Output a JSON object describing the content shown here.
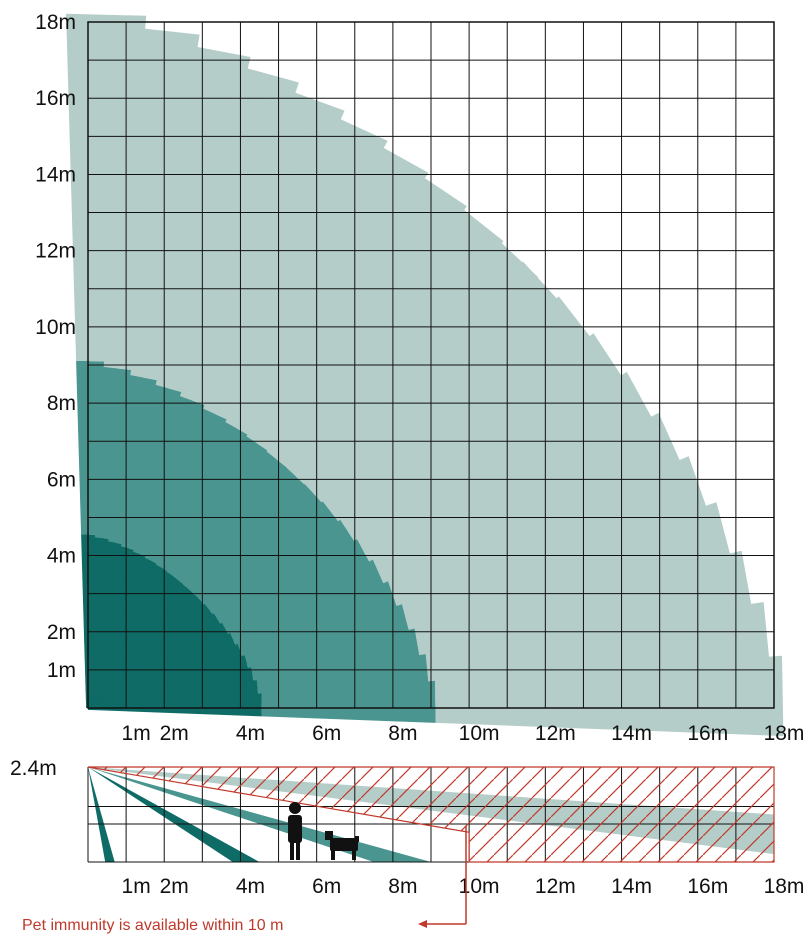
{
  "top_plan": {
    "y_ticks": [
      {
        "value": 1,
        "label": "1m"
      },
      {
        "value": 2,
        "label": "2m"
      },
      {
        "value": 4,
        "label": "4m"
      },
      {
        "value": 6,
        "label": "6m"
      },
      {
        "value": 8,
        "label": "8m"
      },
      {
        "value": 10,
        "label": "10m"
      },
      {
        "value": 12,
        "label": "12m"
      },
      {
        "value": 14,
        "label": "14m"
      },
      {
        "value": 16,
        "label": "16m"
      },
      {
        "value": 18,
        "label": "18m"
      }
    ],
    "x_ticks": [
      {
        "value": 1,
        "label": "1m"
      },
      {
        "value": 2,
        "label": "2m"
      },
      {
        "value": 4,
        "label": "4m"
      },
      {
        "value": 6,
        "label": "6m"
      },
      {
        "value": 8,
        "label": "8m"
      },
      {
        "value": 10,
        "label": "10m"
      },
      {
        "value": 12,
        "label": "12m"
      },
      {
        "value": 14,
        "label": "14m"
      },
      {
        "value": 16,
        "label": "16m"
      },
      {
        "value": 18,
        "label": "18m"
      }
    ],
    "range_m": 18
  },
  "side_view": {
    "height_label": "2.4m",
    "mount_height_m": 2.4,
    "x_ticks": [
      {
        "value": 1,
        "label": "1m"
      },
      {
        "value": 2,
        "label": "2m"
      },
      {
        "value": 4,
        "label": "4m"
      },
      {
        "value": 6,
        "label": "6m"
      },
      {
        "value": 8,
        "label": "8m"
      },
      {
        "value": 10,
        "label": "10m"
      },
      {
        "value": 12,
        "label": "12m"
      },
      {
        "value": 14,
        "label": "14m"
      },
      {
        "value": 16,
        "label": "16m"
      },
      {
        "value": 18,
        "label": "18m"
      }
    ]
  },
  "pet_immunity_note": "Pet immunity is available within 10 m",
  "pet_immunity_range_m": 10,
  "colors": {
    "beam_light": "#b4cdc9",
    "beam_mid": "#4a9590",
    "beam_dark": "#0e6b66",
    "grid": "#111111",
    "hatch": "#c0392b",
    "note_text": "#c0392b"
  },
  "icons": [
    "person-icon",
    "dog-icon",
    "arrow-left-icon"
  ]
}
